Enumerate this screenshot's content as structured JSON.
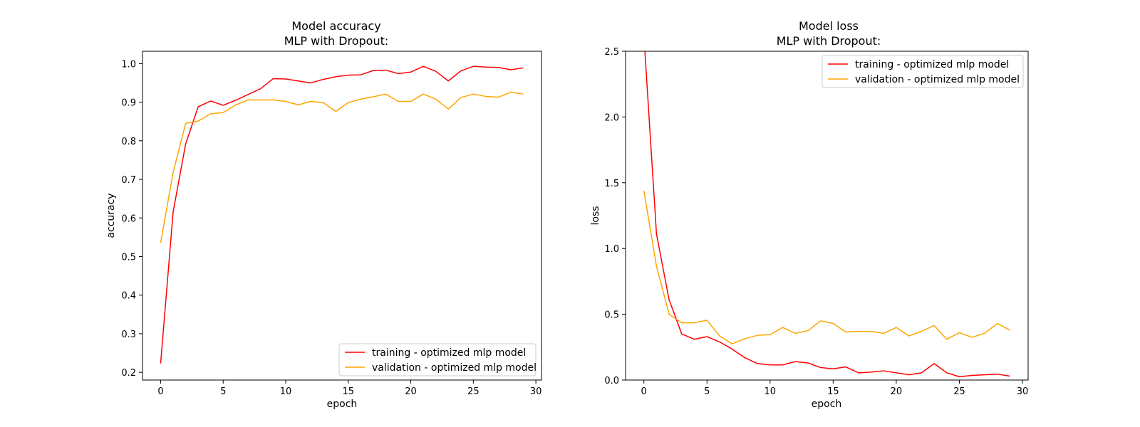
{
  "chart_data": [
    {
      "id": "accuracy",
      "type": "line",
      "title": "Model accuracy",
      "subtitle": "MLP with Dropout:",
      "xlabel": "epoch",
      "ylabel": "accuracy",
      "xlim": [
        -1.45,
        30.45
      ],
      "ylim": [
        0.18,
        1.032
      ],
      "xticks": [
        0,
        5,
        10,
        15,
        20,
        25,
        30
      ],
      "yticks": [
        0.2,
        0.3,
        0.4,
        0.5,
        0.6,
        0.7,
        0.8,
        0.9,
        1.0
      ],
      "ytick_labels": [
        "0.2",
        "0.3",
        "0.4",
        "0.5",
        "0.6",
        "0.7",
        "0.8",
        "0.9",
        "1.0"
      ],
      "legend_position": "lower-right",
      "grid": false,
      "x": [
        0,
        1,
        2,
        3,
        4,
        5,
        6,
        7,
        8,
        9,
        10,
        11,
        12,
        13,
        14,
        15,
        16,
        17,
        18,
        19,
        20,
        21,
        22,
        23,
        24,
        25,
        26,
        27,
        28,
        29
      ],
      "series": [
        {
          "name": "training - optimized mlp model",
          "color": "#ff0000",
          "values": [
            0.223,
            0.616,
            0.792,
            0.888,
            0.903,
            0.892,
            0.905,
            0.92,
            0.935,
            0.961,
            0.96,
            0.955,
            0.95,
            0.959,
            0.966,
            0.97,
            0.971,
            0.982,
            0.983,
            0.974,
            0.978,
            0.993,
            0.98,
            0.955,
            0.981,
            0.993,
            0.991,
            0.99,
            0.984,
            0.989
          ]
        },
        {
          "name": "validation - optimized mlp model",
          "color": "#ffa500",
          "values": [
            0.536,
            0.718,
            0.845,
            0.851,
            0.87,
            0.873,
            0.893,
            0.906,
            0.906,
            0.906,
            0.902,
            0.893,
            0.902,
            0.899,
            0.876,
            0.899,
            0.908,
            0.914,
            0.921,
            0.902,
            0.902,
            0.921,
            0.908,
            0.882,
            0.912,
            0.921,
            0.915,
            0.913,
            0.926,
            0.921
          ]
        }
      ]
    },
    {
      "id": "loss",
      "type": "line",
      "title": "Model loss",
      "subtitle": "MLP with Dropout:",
      "xlabel": "epoch",
      "ylabel": "loss",
      "xlim": [
        -1.45,
        30.45
      ],
      "ylim": [
        0.0,
        2.5
      ],
      "xticks": [
        0,
        5,
        10,
        15,
        20,
        25,
        30
      ],
      "yticks": [
        0.0,
        0.5,
        1.0,
        1.5,
        2.0,
        2.5
      ],
      "ytick_labels": [
        "0.0",
        "0.5",
        "1.0",
        "1.5",
        "2.0",
        "2.5"
      ],
      "legend_position": "top-right",
      "grid": false,
      "x": [
        0,
        1,
        2,
        3,
        4,
        5,
        6,
        7,
        8,
        9,
        10,
        11,
        12,
        13,
        14,
        15,
        16,
        17,
        18,
        19,
        20,
        21,
        22,
        23,
        24,
        25,
        26,
        27,
        28,
        29
      ],
      "series": [
        {
          "name": "training - optimized mlp model",
          "color": "#ff0000",
          "values": [
            2.62,
            1.11,
            0.61,
            0.35,
            0.31,
            0.33,
            0.29,
            0.235,
            0.17,
            0.125,
            0.115,
            0.115,
            0.14,
            0.13,
            0.095,
            0.085,
            0.1,
            0.055,
            0.06,
            0.07,
            0.055,
            0.04,
            0.055,
            0.125,
            0.055,
            0.025,
            0.035,
            0.04,
            0.045,
            0.03
          ]
        },
        {
          "name": "validation - optimized mlp model",
          "color": "#ffa500",
          "values": [
            1.44,
            0.865,
            0.5,
            0.435,
            0.435,
            0.455,
            0.335,
            0.275,
            0.315,
            0.34,
            0.345,
            0.4,
            0.355,
            0.375,
            0.45,
            0.43,
            0.365,
            0.37,
            0.37,
            0.355,
            0.4,
            0.335,
            0.37,
            0.415,
            0.31,
            0.36,
            0.325,
            0.355,
            0.43,
            0.38
          ]
        }
      ]
    }
  ]
}
